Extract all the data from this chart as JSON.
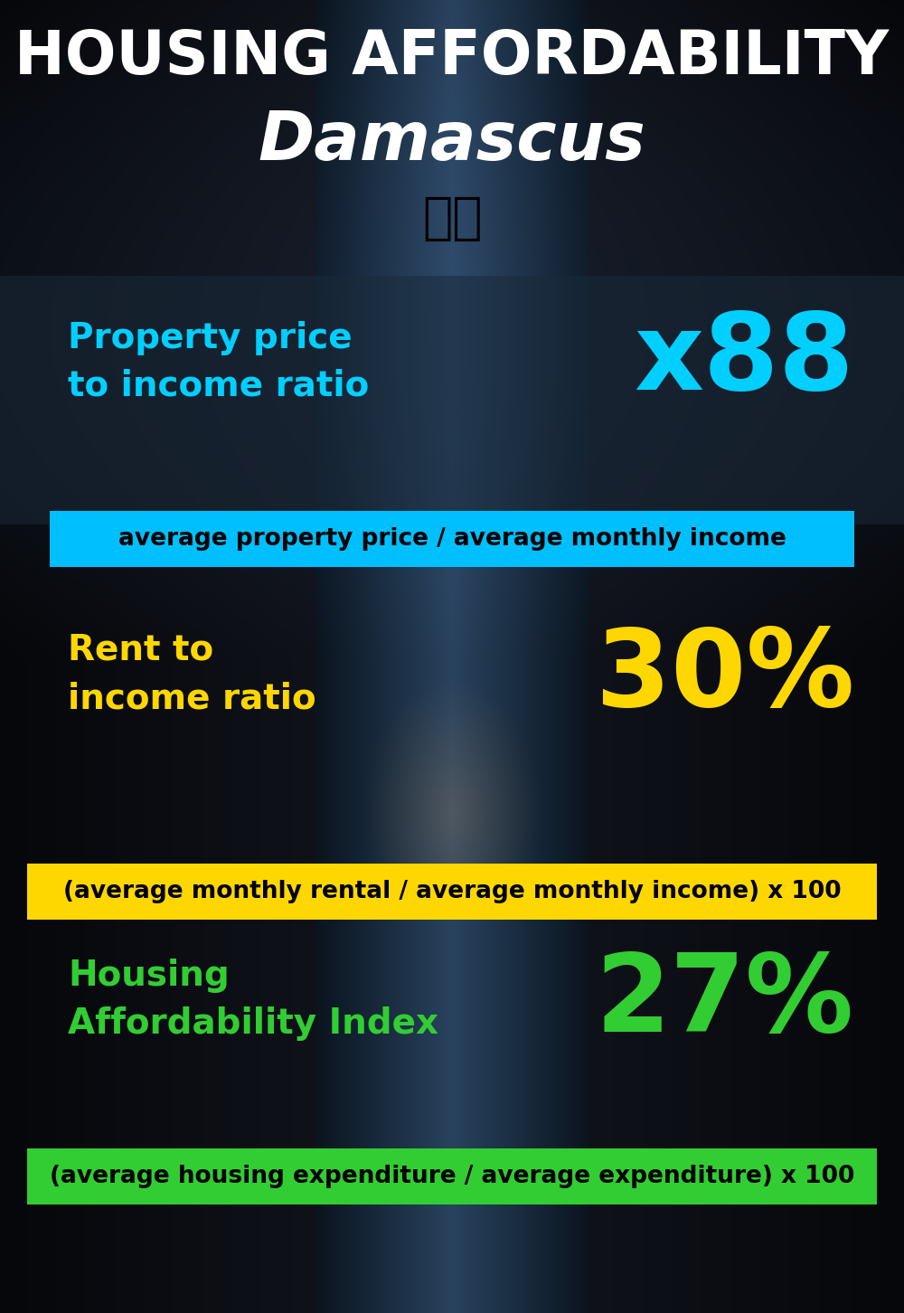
{
  "title_line1": "HOUSING AFFORDABILITY",
  "title_line2": "Damascus",
  "title_line1_color": "#ffffff",
  "title_line2_color": "#ffffff",
  "title_line1_fontsize": 48,
  "title_line2_fontsize": 54,
  "flag_emoji": "🇸🇾",
  "flag_fontsize": 40,
  "section1_label": "Property price\nto income ratio",
  "section1_value": "x88",
  "section1_label_color": "#00cfff",
  "section1_value_color": "#00cfff",
  "section1_label_fontsize": 28,
  "section1_value_fontsize": 86,
  "section1_formula": "average property price / average monthly income",
  "section1_formula_bg": "#00bfff",
  "section1_formula_color": "#000000",
  "section1_formula_fontsize": 19,
  "section2_label": "Rent to\nincome ratio",
  "section2_value": "30%",
  "section2_label_color": "#ffd700",
  "section2_value_color": "#ffd700",
  "section2_label_fontsize": 28,
  "section2_value_fontsize": 86,
  "section2_formula": "(average monthly rental / average monthly income) x 100",
  "section2_formula_bg": "#ffd700",
  "section2_formula_color": "#000000",
  "section2_formula_fontsize": 19,
  "section3_label": "Housing\nAffordability Index",
  "section3_value": "27%",
  "section3_label_color": "#32cd32",
  "section3_value_color": "#32cd32",
  "section3_label_fontsize": 28,
  "section3_value_fontsize": 86,
  "section3_formula": "(average housing expenditure / average expenditure) x 100",
  "section3_formula_bg": "#32cd32",
  "section3_formula_color": "#000000",
  "section3_formula_fontsize": 19,
  "bg_dark": "#07111e",
  "panel_color": "#1a2a3a",
  "panel_alpha": 0.55
}
